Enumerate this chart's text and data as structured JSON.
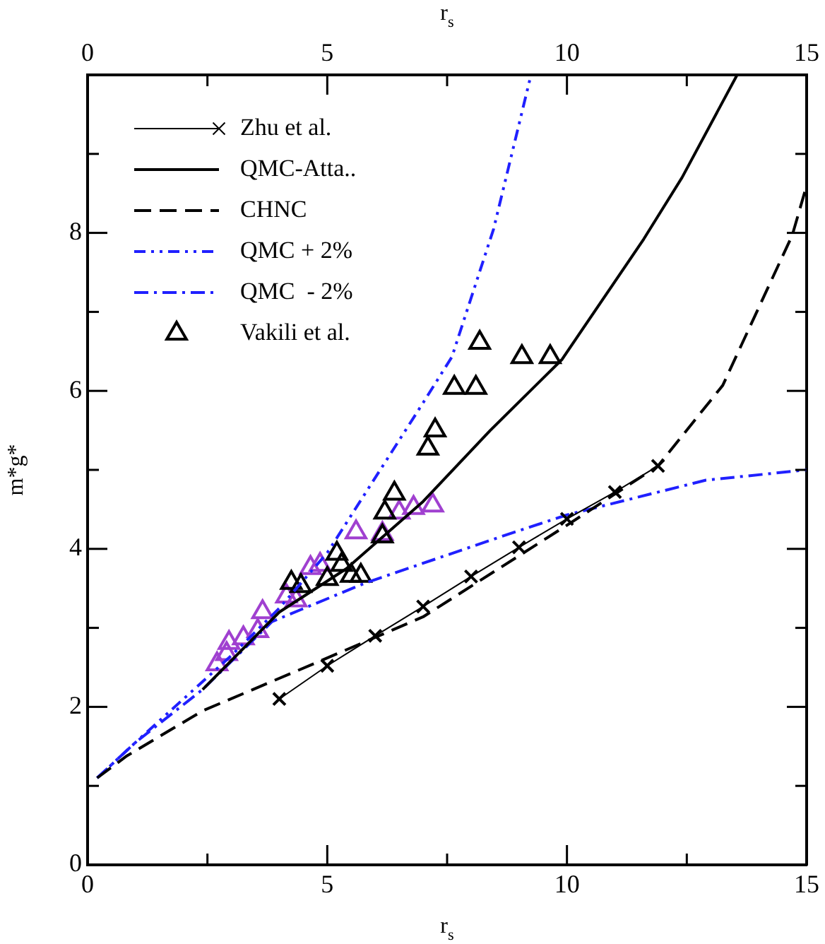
{
  "chart_data": {
    "type": "line",
    "xlabel": "r$_{s}$",
    "x2label": "r$_{s}$",
    "ylabel": "m*g*",
    "xlim": [
      0,
      15
    ],
    "xticks": [
      0,
      {
        "value": 2.5,
        "label": null
      },
      5,
      {
        "value": 7.5,
        "label": null
      },
      10,
      {
        "value": 12.5,
        "label": null
      },
      15
    ],
    "x2lim": [
      0,
      15
    ],
    "x2ticks": [
      0,
      {
        "value": 2.5,
        "label": null
      },
      5,
      {
        "value": 7.5,
        "label": null
      },
      10,
      {
        "value": 12.5,
        "label": null
      },
      15
    ],
    "ylim": [
      0,
      10
    ],
    "yticks": [
      0,
      {
        "value": 1,
        "label": null
      },
      2,
      {
        "value": 3,
        "label": null
      },
      4,
      {
        "value": 5,
        "label": null
      },
      6,
      {
        "value": 7,
        "label": null
      },
      8,
      {
        "value": 9,
        "label": null
      },
      {
        "value": 10,
        "label": null
      }
    ],
    "grid": false,
    "legend": "top left",
    "series": [
      {
        "name": "Zhu et al.",
        "color": "#000000",
        "marker": "cross",
        "line_style": "solid",
        "x": [
          4,
          5,
          6,
          7,
          8,
          9,
          10,
          11,
          11.9
        ],
        "values": [
          2.1,
          2.52,
          2.9,
          3.27,
          3.65,
          4.02,
          4.38,
          4.72,
          5.05
        ]
      },
      {
        "name": "QMC-Atta..",
        "color": "#000000",
        "marker": "none",
        "line_style": "solid",
        "x": [
          2.4,
          4,
          5.4,
          7,
          8.4,
          9.9,
          10.2,
          11.6,
          12.4,
          13.55
        ],
        "values": [
          2.22,
          3.2,
          3.75,
          4.6,
          5.5,
          6.4,
          6.67,
          7.92,
          8.7,
          10
        ]
      },
      {
        "name": "CHNC",
        "color": "#000000",
        "marker": "none",
        "line_style": "dashed",
        "x": [
          0.2,
          0.82,
          2.4,
          4.85,
          7,
          9.95,
          11.9,
          13.25,
          14.7,
          15
        ],
        "values": [
          1.1,
          1.38,
          1.95,
          2.58,
          3.14,
          4.28,
          5.05,
          6.07,
          7.97,
          8.6
        ]
      },
      {
        "name": "QMC + 2%",
        "color": "#2020ff",
        "marker": "none",
        "line_style": "dashdotdot",
        "x": [
          0.2,
          1,
          2,
          3,
          4,
          5,
          6,
          7,
          7.6,
          8.47,
          9.25
        ],
        "values": [
          1.1,
          1.55,
          2.1,
          2.65,
          3.25,
          3.95,
          4.9,
          5.85,
          6.43,
          8.05,
          10
        ]
      },
      {
        "name": "QMC  - 2%",
        "color": "#2020ff",
        "marker": "none",
        "line_style": "dashdot",
        "x": [
          0.2,
          1,
          2.4,
          3.85,
          5.8,
          8.65,
          10,
          12.9,
          15
        ],
        "values": [
          1.1,
          1.55,
          2.22,
          3.08,
          3.57,
          4.16,
          4.43,
          4.87,
          5.0
        ]
      },
      {
        "name": "Vakili et al.",
        "type": "scatter",
        "color": "#000000",
        "marker": "triangle",
        "x": [
          8.18,
          9.06,
          9.65,
          7.65,
          8.1,
          7.25,
          7.1,
          6.4,
          6.2,
          6.15,
          5.2,
          5.3,
          5.7,
          5.5,
          5.0,
          4.45,
          4.25
        ],
        "values": [
          6.61,
          6.43,
          6.43,
          6.04,
          6.04,
          5.5,
          5.27,
          4.7,
          4.46,
          4.16,
          3.94,
          3.8,
          3.66,
          3.66,
          3.62,
          3.53,
          3.57
        ]
      },
      {
        "type": "scatter",
        "color": "#a040d0",
        "marker": "triangle",
        "x": [
          7.2,
          6.8,
          6.5,
          5.6,
          6.15,
          4.85,
          4.65,
          4.15,
          4.35,
          3.65,
          3.55,
          3.25,
          2.95,
          2.9,
          2.7
        ],
        "values": [
          4.55,
          4.52,
          4.46,
          4.21,
          4.19,
          3.8,
          3.76,
          3.4,
          3.35,
          3.2,
          2.96,
          2.87,
          2.81,
          2.67,
          2.54
        ]
      }
    ]
  }
}
